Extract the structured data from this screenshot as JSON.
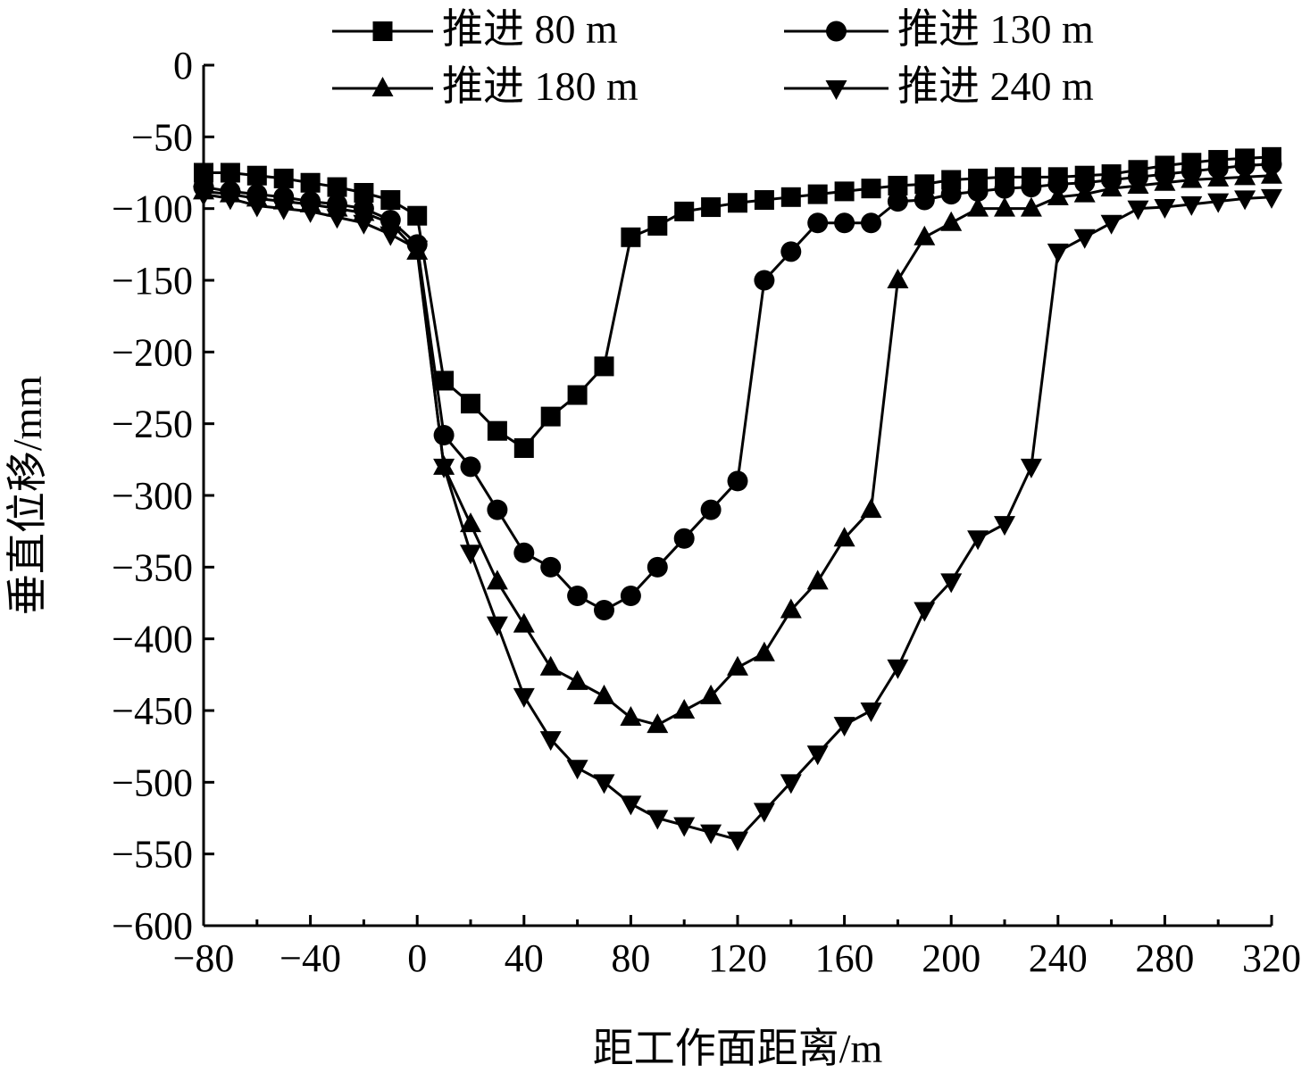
{
  "chart_data": {
    "type": "line",
    "title": "",
    "xlabel": "距工作面距离/m",
    "ylabel": "垂直位移/mm",
    "xlim": [
      -80,
      320
    ],
    "ylim": [
      -600,
      0
    ],
    "xticks": [
      -80,
      -40,
      0,
      40,
      80,
      120,
      160,
      200,
      240,
      280,
      320
    ],
    "yticks": [
      0,
      -50,
      -100,
      -150,
      -200,
      -250,
      -300,
      -350,
      -400,
      -450,
      -500,
      -550,
      -600
    ],
    "xtick_labels": [
      "−80",
      "−40",
      "0",
      "40",
      "80",
      "120",
      "160",
      "200",
      "240",
      "280",
      "320"
    ],
    "ytick_labels": [
      "0",
      "−50",
      "−100",
      "−150",
      "−200",
      "−250",
      "−300",
      "−350",
      "−400",
      "−450",
      "−500",
      "−550",
      "−600"
    ],
    "grid": false,
    "legend_position": "top",
    "x": [
      -80,
      -70,
      -60,
      -50,
      -40,
      -30,
      -20,
      -10,
      0,
      10,
      20,
      30,
      40,
      50,
      60,
      70,
      80,
      90,
      100,
      110,
      120,
      130,
      140,
      150,
      160,
      170,
      180,
      190,
      200,
      210,
      220,
      230,
      240,
      250,
      260,
      270,
      280,
      290,
      300,
      310,
      320
    ],
    "series": [
      {
        "name": "推进 80 m",
        "marker": "square",
        "values": [
          -75,
          -75,
          -77,
          -79,
          -82,
          -85,
          -89,
          -94,
          -105,
          -220,
          -236,
          -255,
          -267,
          -245,
          -230,
          -210,
          -120,
          -112,
          -102,
          -99,
          -96,
          -94,
          -92,
          -90,
          -88,
          -86,
          -84,
          -83,
          -80,
          -79,
          -78,
          -78,
          -78,
          -77,
          -76,
          -73,
          -70,
          -68,
          -66,
          -65,
          -64
        ]
      },
      {
        "name": "推进 130 m",
        "marker": "circle",
        "values": [
          -85,
          -88,
          -90,
          -92,
          -95,
          -97,
          -100,
          -108,
          -125,
          -258,
          -280,
          -310,
          -340,
          -350,
          -370,
          -380,
          -370,
          -350,
          -330,
          -310,
          -290,
          -150,
          -130,
          -110,
          -110,
          -110,
          -95,
          -94,
          -90,
          -88,
          -86,
          -85,
          -83,
          -82,
          -80,
          -78,
          -76,
          -74,
          -72,
          -70,
          -69
        ]
      },
      {
        "name": "推进 180 m",
        "marker": "triangle-up",
        "values": [
          -88,
          -90,
          -93,
          -95,
          -97,
          -100,
          -103,
          -110,
          -130,
          -280,
          -320,
          -360,
          -390,
          -420,
          -430,
          -440,
          -455,
          -460,
          -450,
          -440,
          -420,
          -410,
          -380,
          -360,
          -330,
          -310,
          -150,
          -120,
          -110,
          -100,
          -100,
          -100,
          -92,
          -90,
          -86,
          -84,
          -82,
          -80,
          -79,
          -78,
          -77
        ]
      },
      {
        "name": "推进 240 m",
        "marker": "triangle-down",
        "values": [
          -90,
          -93,
          -98,
          -100,
          -102,
          -106,
          -110,
          -118,
          -128,
          -280,
          -340,
          -390,
          -440,
          -470,
          -490,
          -500,
          -515,
          -525,
          -530,
          -535,
          -540,
          -520,
          -500,
          -480,
          -460,
          -450,
          -420,
          -380,
          -360,
          -330,
          -320,
          -280,
          -130,
          -120,
          -110,
          -100,
          -99,
          -97,
          -95,
          -93,
          -92
        ]
      }
    ]
  }
}
